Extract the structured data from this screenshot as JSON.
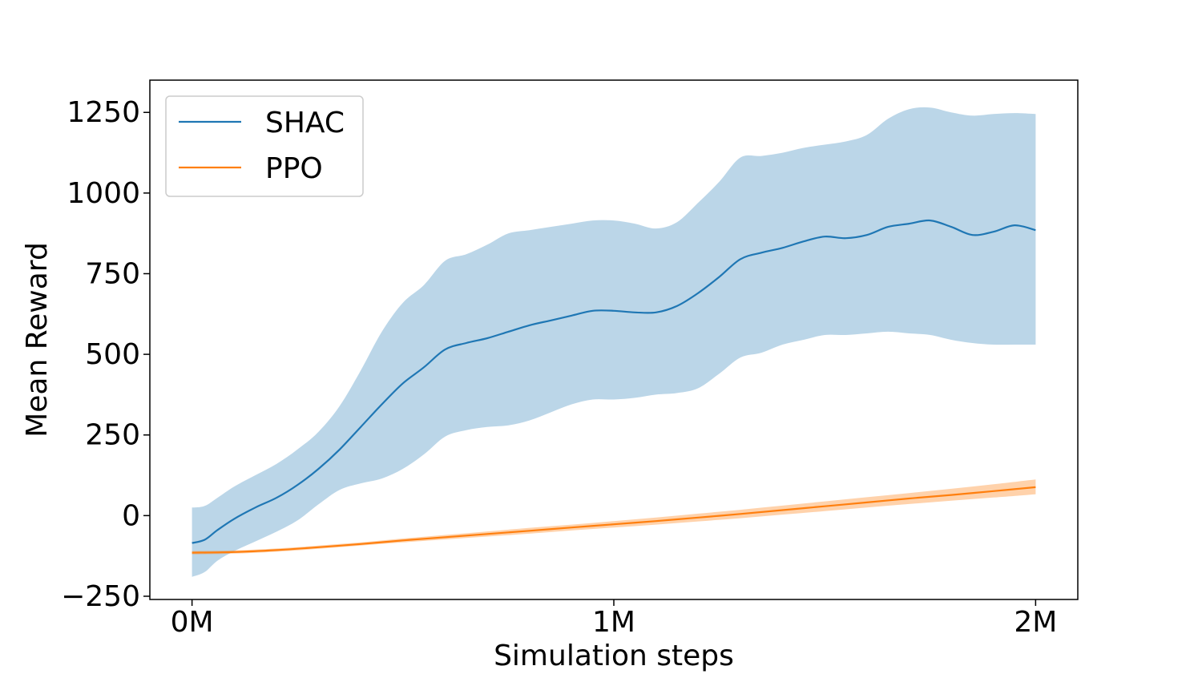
{
  "chart_data": {
    "type": "line",
    "title": "",
    "xlabel": "Simulation steps",
    "ylabel": "Mean Reward",
    "xlim": [
      -0.1,
      2.1
    ],
    "ylim": [
      -260,
      1350
    ],
    "xticks": [
      0,
      1,
      2
    ],
    "xtick_labels": [
      "0M",
      "1M",
      "2M"
    ],
    "yticks": [
      -250,
      0,
      250,
      500,
      750,
      1000,
      1250
    ],
    "ytick_labels": [
      "−250",
      "0",
      "250",
      "500",
      "750",
      "1000",
      "1250"
    ],
    "legend_position": "top-left",
    "grid": false,
    "series": [
      {
        "name": "SHAC",
        "color": "#1f77b4",
        "band_color": "#1f77b4",
        "band_opacity": 0.3,
        "x": [
          0,
          0.03,
          0.06,
          0.1,
          0.15,
          0.2,
          0.25,
          0.3,
          0.35,
          0.4,
          0.45,
          0.5,
          0.55,
          0.6,
          0.65,
          0.7,
          0.75,
          0.8,
          0.85,
          0.9,
          0.95,
          1.0,
          1.05,
          1.1,
          1.15,
          1.2,
          1.25,
          1.3,
          1.35,
          1.4,
          1.45,
          1.5,
          1.55,
          1.6,
          1.65,
          1.7,
          1.75,
          1.8,
          1.85,
          1.9,
          1.95,
          2.0
        ],
        "y": [
          -85,
          -75,
          -45,
          -10,
          25,
          55,
          95,
          145,
          205,
          275,
          345,
          410,
          460,
          515,
          535,
          550,
          570,
          590,
          605,
          620,
          635,
          635,
          630,
          630,
          650,
          690,
          740,
          795,
          815,
          830,
          850,
          865,
          860,
          870,
          895,
          905,
          915,
          895,
          870,
          880,
          900,
          885
        ],
        "upper": [
          25,
          30,
          55,
          90,
          125,
          160,
          205,
          260,
          340,
          450,
          570,
          660,
          715,
          790,
          810,
          840,
          875,
          885,
          895,
          905,
          915,
          915,
          905,
          890,
          910,
          970,
          1035,
          1110,
          1115,
          1125,
          1140,
          1150,
          1160,
          1180,
          1230,
          1260,
          1265,
          1250,
          1240,
          1245,
          1248,
          1245
        ],
        "lower": [
          -190,
          -175,
          -140,
          -110,
          -80,
          -50,
          -15,
          35,
          80,
          100,
          115,
          145,
          190,
          245,
          265,
          275,
          280,
          295,
          320,
          345,
          360,
          360,
          365,
          375,
          380,
          395,
          440,
          490,
          505,
          530,
          545,
          560,
          560,
          565,
          570,
          565,
          560,
          545,
          535,
          530,
          530,
          530
        ]
      },
      {
        "name": "PPO",
        "color": "#ff7f0e",
        "band_color": "#ff7f0e",
        "band_opacity": 0.35,
        "x": [
          0,
          0.1,
          0.2,
          0.3,
          0.4,
          0.5,
          0.6,
          0.7,
          0.8,
          0.9,
          1.0,
          1.1,
          1.2,
          1.3,
          1.4,
          1.5,
          1.6,
          1.7,
          1.8,
          1.9,
          2.0
        ],
        "y": [
          -115,
          -113,
          -107,
          -98,
          -88,
          -77,
          -67,
          -57,
          -47,
          -37,
          -27,
          -17,
          -6,
          5,
          17,
          29,
          41,
          53,
          64,
          76,
          88
        ],
        "upper": [
          -110,
          -108,
          -102,
          -93,
          -83,
          -71,
          -60,
          -49,
          -38,
          -28,
          -17,
          -6,
          6,
          18,
          31,
          44,
          57,
          70,
          83,
          97,
          112
        ],
        "lower": [
          -120,
          -118,
          -112,
          -103,
          -93,
          -83,
          -74,
          -65,
          -56,
          -46,
          -37,
          -28,
          -18,
          -8,
          3,
          14,
          25,
          36,
          46,
          56,
          66
        ]
      }
    ]
  }
}
